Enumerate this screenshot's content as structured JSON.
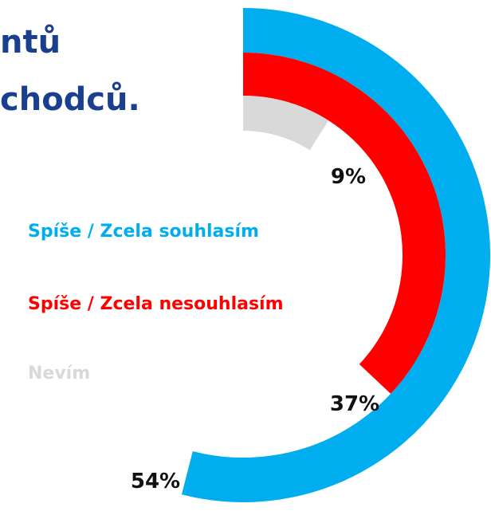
{
  "chart_data": {
    "type": "radial-bar",
    "title_lines": [
      "ntů",
      "chodců."
    ],
    "series": [
      {
        "name": "Spíše / Zcela souhlasím",
        "color": "#00aeef",
        "values": [
          54
        ],
        "value_labels": [
          "54%"
        ]
      },
      {
        "name": "Spíše / Zcela nesouhlasím",
        "color": "#ff0000",
        "values": [
          37
        ],
        "value_labels": [
          "37%"
        ]
      },
      {
        "name": "Nevím",
        "color": "#d9d9d9",
        "values": [
          9
        ],
        "value_labels": [
          "9%"
        ]
      }
    ]
  }
}
